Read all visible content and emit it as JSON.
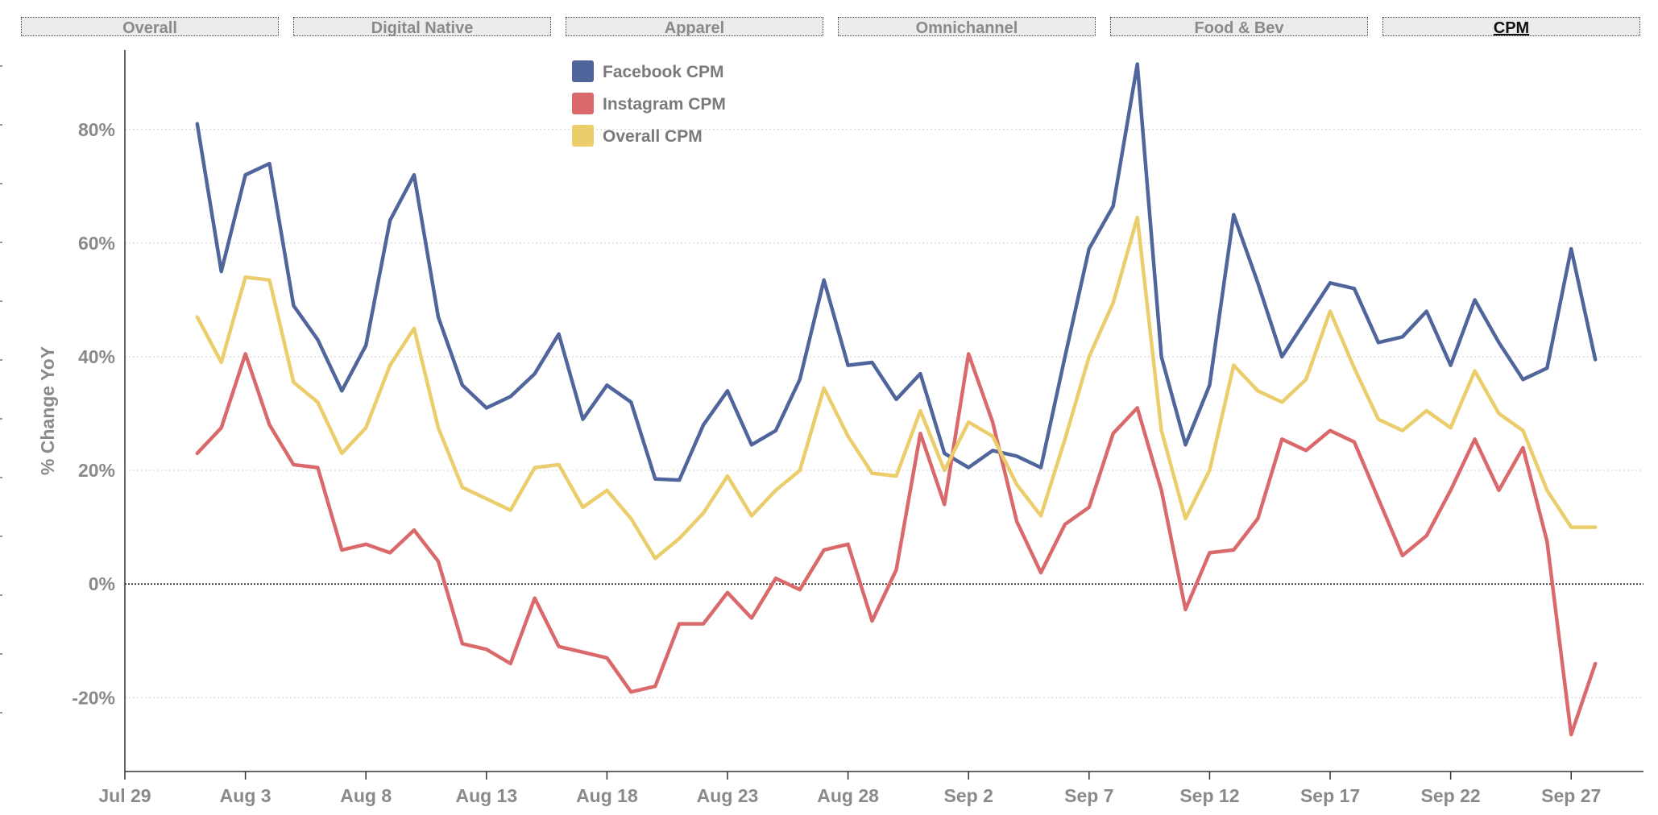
{
  "tabs": [
    {
      "label": "Overall",
      "active": false
    },
    {
      "label": "Digital Native",
      "active": false
    },
    {
      "label": "Apparel",
      "active": false
    },
    {
      "label": "Omnichannel",
      "active": false
    },
    {
      "label": "Food & Bev",
      "active": false
    },
    {
      "label": "CPM",
      "active": true
    }
  ],
  "chart_data": {
    "type": "line",
    "title": "",
    "xlabel": "",
    "ylabel": "% Change YoY",
    "ylim": [
      -33,
      94
    ],
    "xlim": [
      "2020-07-29",
      "2020-09-30"
    ],
    "y_ticks": [
      -20,
      0,
      20,
      40,
      60,
      80
    ],
    "y_tick_labels": [
      "-20%",
      "0%",
      "20%",
      "40%",
      "60%",
      "80%"
    ],
    "x_ticks": [
      "2020-07-29",
      "2020-08-03",
      "2020-08-08",
      "2020-08-13",
      "2020-08-18",
      "2020-08-23",
      "2020-08-28",
      "2020-09-02",
      "2020-09-07",
      "2020-09-12",
      "2020-09-17",
      "2020-09-22",
      "2020-09-27"
    ],
    "x_tick_labels": [
      "Jul 29",
      "Aug 3",
      "Aug 8",
      "Aug 13",
      "Aug 18",
      "Aug 23",
      "Aug 28",
      "Sep 2",
      "Sep 7",
      "Sep 12",
      "Sep 17",
      "Sep 22",
      "Sep 27"
    ],
    "grid": true,
    "zero_line": true,
    "legend_position": "top",
    "x_start": "2020-08-01",
    "x_step_days": 1,
    "series": [
      {
        "name": "Facebook CPM",
        "color": "#4f659b",
        "values": [
          81,
          55,
          72,
          74,
          49,
          43,
          34,
          42,
          64,
          72,
          47,
          35,
          31,
          33,
          37,
          44,
          29,
          35,
          32,
          18.5,
          18.3,
          28,
          34,
          24.5,
          27,
          36,
          53.5,
          38.5,
          39,
          32.5,
          37,
          23,
          20.5,
          23.5,
          22.5,
          20.5,
          40,
          59,
          66.5,
          91.5,
          40,
          24.5,
          35,
          65,
          53,
          40,
          46.5,
          53,
          52,
          42.5,
          43.5,
          48,
          38.5,
          50,
          42.5,
          36,
          38,
          59,
          39.5
        ]
      },
      {
        "name": "Instagram CPM",
        "color": "#d9696b",
        "values": [
          23,
          27.5,
          40.5,
          28,
          21,
          20.5,
          6,
          7,
          5.5,
          9.5,
          4,
          -10.5,
          -11.5,
          -14,
          -2.5,
          -11,
          -12,
          -13,
          -19,
          -18,
          -7,
          -7,
          -1.5,
          -6,
          1,
          -1,
          6,
          7,
          -6.5,
          2.5,
          26.5,
          14,
          40.5,
          28.5,
          11,
          2,
          10.5,
          13.5,
          26.5,
          31,
          16.5,
          -4.5,
          5.5,
          6,
          11.5,
          25.5,
          23.5,
          27,
          25,
          15,
          5,
          8.5,
          16.5,
          25.5,
          16.5,
          24,
          7.5,
          -26.5,
          -14
        ]
      },
      {
        "name": "Overall CPM",
        "color": "#ebcd6b",
        "values": [
          47,
          39,
          54,
          53.5,
          35.5,
          32,
          23,
          27.5,
          38.5,
          45,
          27.5,
          17,
          15,
          13,
          20.5,
          21,
          13.5,
          16.5,
          11.5,
          4.5,
          8,
          12.5,
          19,
          12,
          16.5,
          20,
          34.5,
          26,
          19.5,
          19,
          30.5,
          20,
          28.5,
          26,
          17.5,
          12,
          25.5,
          40,
          49.5,
          64.5,
          27,
          11.5,
          20,
          38.5,
          34,
          32,
          36,
          48,
          38,
          29,
          27,
          30.5,
          27.5,
          37.5,
          30,
          27,
          16.5,
          10,
          10
        ]
      }
    ]
  }
}
